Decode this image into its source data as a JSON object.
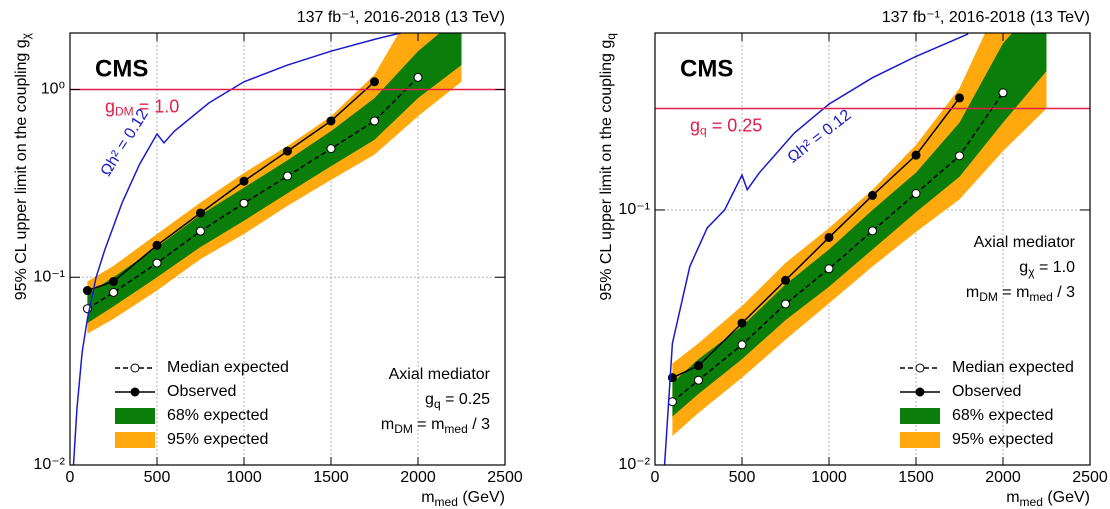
{
  "chart_data": [
    {
      "type": "line",
      "log_y": true,
      "grid": true,
      "legend": "lower left",
      "annotation_position": "lower right",
      "title": "137 fb⁻¹, 2016-2018 (13 TeV)",
      "experiment": "CMS",
      "x_label": [
        {
          "text": "m",
          "sub": "med"
        },
        {
          "text": " (GeV)"
        }
      ],
      "y_label": [
        {
          "text": "95% CL upper limit on the coupling g",
          "sub": "χ"
        }
      ],
      "annotation": [
        [
          {
            "text": "Axial mediator"
          }
        ],
        [
          {
            "text": "g",
            "sub": "q"
          },
          {
            "text": " = 0.25"
          }
        ],
        [
          {
            "text": "m",
            "sub": "DM"
          },
          {
            "text": " = m",
            "sub": "med"
          },
          {
            "text": " / 3"
          }
        ]
      ],
      "xlim": [
        0,
        2500
      ],
      "xticks": [
        0,
        500,
        1000,
        1500,
        2000,
        2500
      ],
      "ylim": [
        0.01,
        2
      ],
      "yticks": [
        {
          "value": 0.01,
          "label": "10⁻²"
        },
        {
          "value": 0.1,
          "label": "10⁻¹"
        },
        {
          "value": 1,
          "label": "10⁰"
        }
      ],
      "hlines": [
        {
          "value": 1,
          "color": "#e0204a",
          "label": [
            {
              "text": "g",
              "sub": "DM"
            },
            {
              "text": " = 1.0"
            }
          ]
        }
      ],
      "series": [
        {
          "name": "95% expected",
          "style": "band",
          "color": "#ffa90e",
          "x": [
            100,
            250,
            500,
            750,
            1000,
            1250,
            1500,
            1750,
            2000,
            2250
          ],
          "lower": [
            0.05,
            0.06,
            0.085,
            0.125,
            0.17,
            0.24,
            0.33,
            0.45,
            0.72,
            1.1
          ],
          "upper": [
            0.095,
            0.115,
            0.17,
            0.25,
            0.36,
            0.5,
            0.72,
            1.2,
            3,
            4
          ]
        },
        {
          "name": "68% expected",
          "style": "band",
          "color": "#0a7d0a",
          "x": [
            100,
            250,
            500,
            750,
            1000,
            1250,
            1500,
            1750,
            2000,
            2250
          ],
          "lower": [
            0.057,
            0.07,
            0.1,
            0.145,
            0.2,
            0.28,
            0.39,
            0.54,
            0.9,
            1.35
          ],
          "upper": [
            0.082,
            0.1,
            0.145,
            0.215,
            0.3,
            0.42,
            0.6,
            0.9,
            1.6,
            2.5
          ]
        },
        {
          "name": "Median expected",
          "style": "dashed",
          "marker": "open",
          "color": "#000000",
          "x": [
            100,
            250,
            500,
            750,
            1000,
            1250,
            1500,
            1750,
            2000
          ],
          "values": [
            0.068,
            0.083,
            0.119,
            0.176,
            0.248,
            0.346,
            0.484,
            0.68,
            1.16
          ]
        },
        {
          "name": "Observed",
          "style": "solid",
          "marker": "filled",
          "color": "#000000",
          "x": [
            100,
            250,
            500,
            750,
            1000,
            1250,
            1500,
            1750
          ],
          "values": [
            0.085,
            0.095,
            0.148,
            0.22,
            0.325,
            0.47,
            0.68,
            1.1
          ]
        },
        {
          "label": "Ωh² = 0.12",
          "style": "solid",
          "color": "#1a1acc",
          "x": [
            20,
            40,
            70,
            100,
            150,
            200,
            300,
            400,
            500,
            540,
            600,
            800,
            1000,
            1250,
            1500,
            1750,
            1900
          ],
          "values": [
            0.01,
            0.02,
            0.04,
            0.06,
            0.1,
            0.14,
            0.25,
            0.4,
            0.58,
            0.52,
            0.6,
            0.85,
            1.1,
            1.35,
            1.6,
            1.85,
            2.0
          ]
        }
      ]
    },
    {
      "type": "line",
      "log_y": true,
      "grid": true,
      "legend": "lower right",
      "annotation_position": "upper right",
      "title": "137 fb⁻¹, 2016-2018 (13 TeV)",
      "experiment": "CMS",
      "x_label": [
        {
          "text": "m",
          "sub": "med"
        },
        {
          "text": " (GeV)"
        }
      ],
      "y_label": [
        {
          "text": "95% CL upper limit on the coupling g",
          "sub": "q"
        }
      ],
      "annotation": [
        [
          {
            "text": "Axial mediator"
          }
        ],
        [
          {
            "text": "g",
            "sub": "χ"
          },
          {
            "text": " = 1.0"
          }
        ],
        [
          {
            "text": "m",
            "sub": "DM"
          },
          {
            "text": " = m",
            "sub": "med"
          },
          {
            "text": " / 3"
          }
        ]
      ],
      "xlim": [
        0,
        2500
      ],
      "xticks": [
        0,
        500,
        1000,
        1500,
        2000,
        2500
      ],
      "ylim": [
        0.01,
        0.494
      ],
      "yticks": [
        {
          "value": 0.01,
          "label": "10⁻²"
        },
        {
          "value": 0.1,
          "label": "10⁻¹"
        }
      ],
      "hlines": [
        {
          "value": 0.25,
          "color": "#e0204a",
          "label": [
            {
              "text": "g",
              "sub": "q"
            },
            {
              "text": " = 0.25"
            }
          ]
        }
      ],
      "series": [
        {
          "name": "95% expected",
          "style": "band",
          "color": "#ffa90e",
          "x": [
            100,
            250,
            500,
            750,
            1000,
            1250,
            1500,
            1750,
            2000,
            2250
          ],
          "lower": [
            0.013,
            0.016,
            0.022,
            0.031,
            0.043,
            0.06,
            0.082,
            0.11,
            0.17,
            0.25
          ],
          "upper": [
            0.025,
            0.03,
            0.042,
            0.062,
            0.085,
            0.12,
            0.18,
            0.3,
            0.7,
            1
          ]
        },
        {
          "name": "68% expected",
          "style": "band",
          "color": "#0a7d0a",
          "x": [
            100,
            250,
            500,
            750,
            1000,
            1250,
            1500,
            1750,
            2000,
            2250
          ],
          "lower": [
            0.0155,
            0.019,
            0.026,
            0.037,
            0.05,
            0.07,
            0.098,
            0.135,
            0.22,
            0.35
          ],
          "upper": [
            0.021,
            0.026,
            0.035,
            0.051,
            0.07,
            0.1,
            0.14,
            0.22,
            0.45,
            0.7
          ]
        },
        {
          "name": "Median expected",
          "style": "dashed",
          "marker": "open",
          "color": "#000000",
          "x": [
            100,
            250,
            500,
            750,
            1000,
            1250,
            1500,
            1750,
            2000
          ],
          "values": [
            0.0177,
            0.0215,
            0.0296,
            0.0428,
            0.0588,
            0.0828,
            0.116,
            0.163,
            0.288
          ]
        },
        {
          "name": "Observed",
          "style": "solid",
          "marker": "filled",
          "color": "#000000",
          "x": [
            100,
            250,
            500,
            750,
            1000,
            1250,
            1500,
            1750
          ],
          "values": [
            0.022,
            0.0245,
            0.036,
            0.053,
            0.078,
            0.114,
            0.164,
            0.275
          ]
        },
        {
          "label": "Ωh² = 0.12",
          "style": "solid",
          "color": "#1a1acc",
          "x": [
            55,
            100,
            200,
            300,
            400,
            500,
            530,
            600,
            800,
            1000,
            1250,
            1500,
            1800
          ],
          "values": [
            0.01,
            0.03,
            0.06,
            0.085,
            0.1,
            0.137,
            0.12,
            0.14,
            0.2,
            0.26,
            0.33,
            0.4,
            0.49
          ]
        }
      ]
    }
  ]
}
